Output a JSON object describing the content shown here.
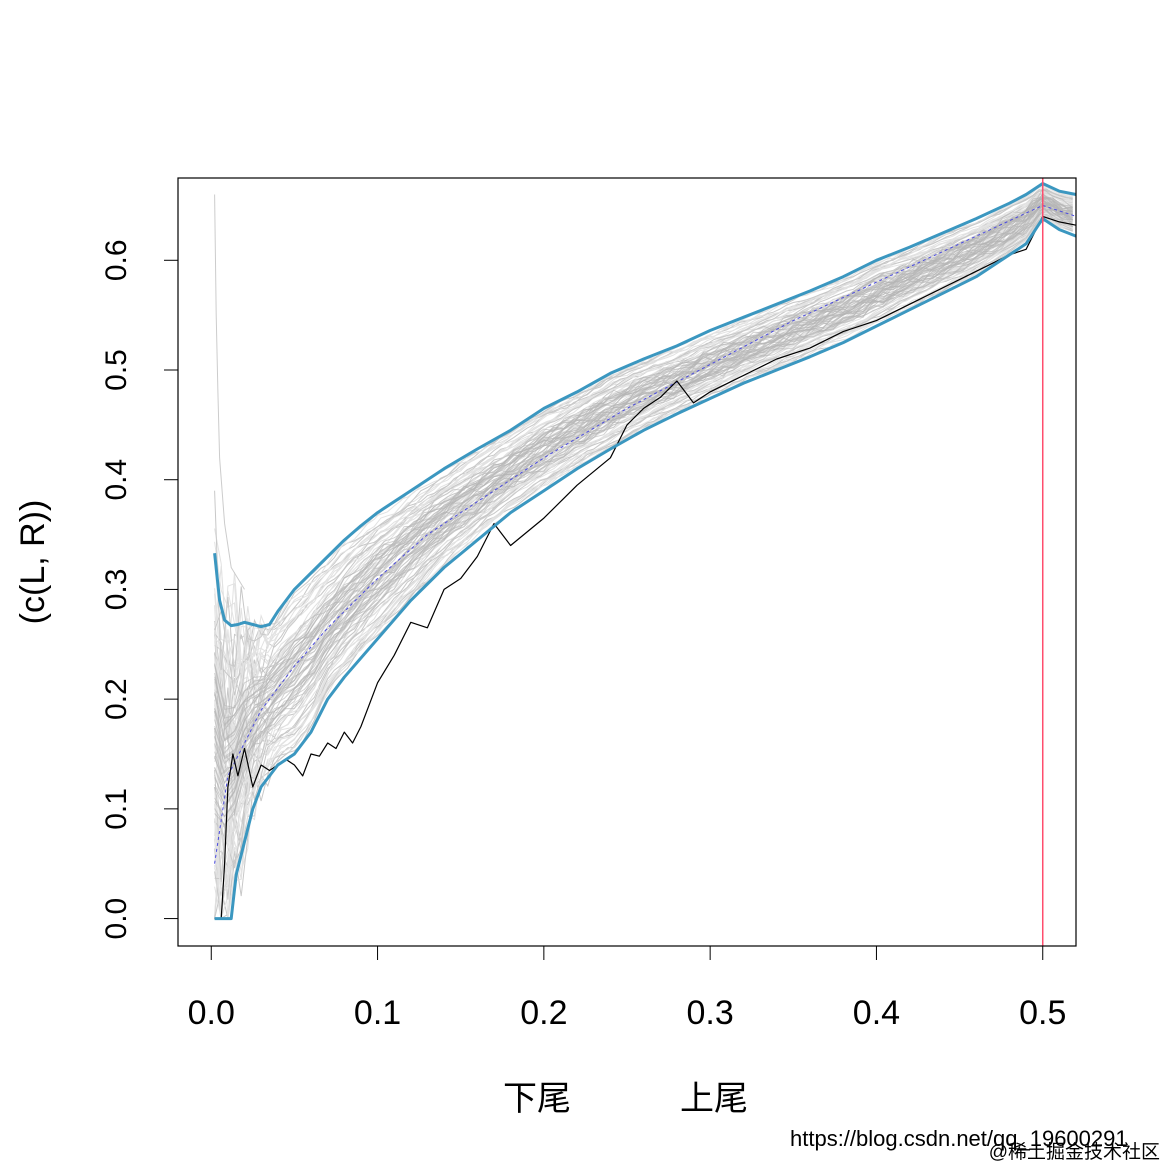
{
  "chart_data": {
    "type": "line",
    "title": "",
    "xlabel_lower": "下尾",
    "xlabel_upper": "上尾",
    "ylabel": "(c(L, R))",
    "xlim": [
      -0.02,
      0.52
    ],
    "ylim": [
      -0.025,
      0.675
    ],
    "x_ticks": [
      "0.0",
      "0.1",
      "0.2",
      "0.3",
      "0.4",
      "0.5"
    ],
    "y_ticks": [
      "0.0",
      "0.1",
      "0.2",
      "0.3",
      "0.4",
      "0.5",
      "0.6"
    ],
    "grid": false,
    "legend": "none",
    "reference_line": {
      "x": 0.5,
      "color": "#ff4d6d"
    },
    "series": [
      {
        "role": "upper-envelope",
        "color": "#3b97c0",
        "x": [
          0.002,
          0.005,
          0.008,
          0.012,
          0.016,
          0.02,
          0.025,
          0.03,
          0.035,
          0.04,
          0.045,
          0.05,
          0.06,
          0.07,
          0.08,
          0.09,
          0.1,
          0.12,
          0.14,
          0.16,
          0.18,
          0.2,
          0.22,
          0.24,
          0.26,
          0.28,
          0.3,
          0.32,
          0.34,
          0.36,
          0.38,
          0.4,
          0.42,
          0.44,
          0.46,
          0.48,
          0.49,
          0.5,
          0.51,
          0.52
        ],
        "y": [
          0.333,
          0.29,
          0.272,
          0.267,
          0.268,
          0.27,
          0.268,
          0.266,
          0.268,
          0.28,
          0.29,
          0.3,
          0.315,
          0.33,
          0.345,
          0.358,
          0.37,
          0.39,
          0.41,
          0.428,
          0.445,
          0.465,
          0.48,
          0.497,
          0.51,
          0.522,
          0.536,
          0.548,
          0.56,
          0.572,
          0.585,
          0.6,
          0.612,
          0.625,
          0.638,
          0.652,
          0.66,
          0.67,
          0.663,
          0.66
        ]
      },
      {
        "role": "lower-envelope",
        "color": "#3b97c0",
        "x": [
          0.002,
          0.008,
          0.012,
          0.015,
          0.02,
          0.025,
          0.03,
          0.035,
          0.04,
          0.05,
          0.06,
          0.07,
          0.08,
          0.1,
          0.12,
          0.14,
          0.16,
          0.18,
          0.2,
          0.22,
          0.24,
          0.26,
          0.28,
          0.3,
          0.32,
          0.34,
          0.36,
          0.38,
          0.4,
          0.42,
          0.44,
          0.46,
          0.48,
          0.49,
          0.5,
          0.51,
          0.52
        ],
        "y": [
          0.0,
          0.0,
          0.0,
          0.04,
          0.07,
          0.1,
          0.12,
          0.13,
          0.14,
          0.15,
          0.17,
          0.2,
          0.22,
          0.255,
          0.29,
          0.32,
          0.345,
          0.37,
          0.39,
          0.41,
          0.428,
          0.445,
          0.46,
          0.474,
          0.488,
          0.5,
          0.512,
          0.525,
          0.54,
          0.555,
          0.57,
          0.585,
          0.605,
          0.615,
          0.638,
          0.628,
          0.622
        ]
      },
      {
        "role": "observed",
        "color": "#000000",
        "x": [
          0.002,
          0.006,
          0.008,
          0.01,
          0.013,
          0.016,
          0.02,
          0.025,
          0.03,
          0.035,
          0.04,
          0.045,
          0.05,
          0.055,
          0.06,
          0.065,
          0.07,
          0.075,
          0.08,
          0.085,
          0.09,
          0.1,
          0.11,
          0.12,
          0.13,
          0.14,
          0.15,
          0.16,
          0.17,
          0.18,
          0.2,
          0.22,
          0.24,
          0.25,
          0.26,
          0.27,
          0.28,
          0.29,
          0.3,
          0.32,
          0.34,
          0.36,
          0.38,
          0.4,
          0.42,
          0.44,
          0.46,
          0.48,
          0.49,
          0.5,
          0.51,
          0.52
        ],
        "y": [
          0.0,
          0.0,
          0.05,
          0.12,
          0.15,
          0.13,
          0.155,
          0.12,
          0.14,
          0.135,
          0.14,
          0.145,
          0.14,
          0.13,
          0.15,
          0.148,
          0.16,
          0.155,
          0.17,
          0.16,
          0.175,
          0.215,
          0.24,
          0.27,
          0.265,
          0.3,
          0.31,
          0.33,
          0.36,
          0.34,
          0.365,
          0.395,
          0.42,
          0.45,
          0.465,
          0.475,
          0.49,
          0.47,
          0.48,
          0.495,
          0.51,
          0.52,
          0.535,
          0.545,
          0.56,
          0.575,
          0.59,
          0.605,
          0.61,
          0.64,
          0.635,
          0.632
        ]
      },
      {
        "role": "mean",
        "color": "#4a4ae0",
        "x": [
          0.002,
          0.01,
          0.02,
          0.03,
          0.05,
          0.07,
          0.1,
          0.13,
          0.16,
          0.2,
          0.25,
          0.3,
          0.35,
          0.4,
          0.45,
          0.5,
          0.51,
          0.52
        ],
        "y": [
          0.05,
          0.13,
          0.16,
          0.19,
          0.23,
          0.265,
          0.31,
          0.35,
          0.38,
          0.42,
          0.465,
          0.505,
          0.545,
          0.58,
          0.615,
          0.65,
          0.645,
          0.64
        ]
      }
    ]
  },
  "watermark": "@稀土掘金技术社区",
  "watermark_faint": "https://blog.csdn.net/qq_19600291"
}
